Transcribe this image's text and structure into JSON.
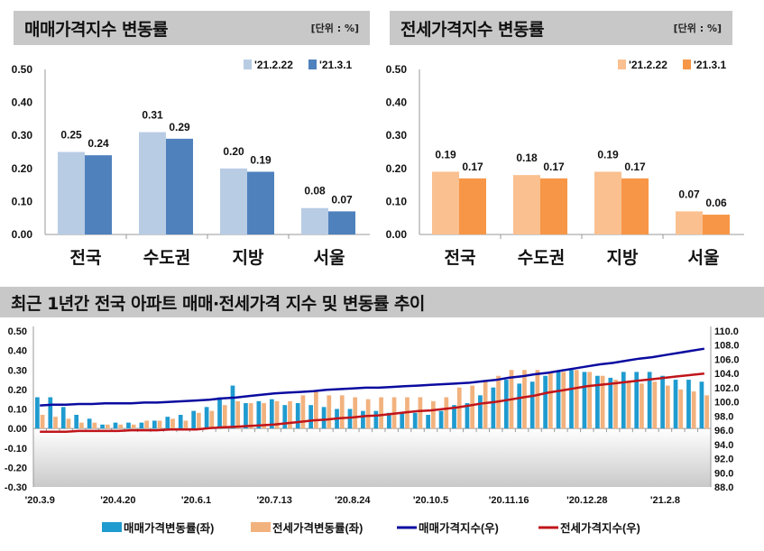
{
  "chart_data": [
    {
      "type": "bar",
      "title": "매매가격지수 변동률",
      "unit": "[단위 : %]",
      "categories": [
        "전국",
        "수도권",
        "지방",
        "서울"
      ],
      "ylim": [
        0,
        0.5
      ],
      "yticks": [
        "0.00",
        "0.10",
        "0.20",
        "0.30",
        "0.40",
        "0.50"
      ],
      "legend": "top-right",
      "series": [
        {
          "name": "'21.2.22",
          "values": [
            0.25,
            0.31,
            0.2,
            0.08
          ],
          "color": "#b8cce4"
        },
        {
          "name": "'21.3.1",
          "values": [
            0.24,
            0.29,
            0.19,
            0.07
          ],
          "color": "#4f81bd"
        }
      ]
    },
    {
      "type": "bar",
      "title": "전세가격지수 변동률",
      "unit": "[단위 : %]",
      "categories": [
        "전국",
        "수도권",
        "지방",
        "서울"
      ],
      "ylim": [
        0,
        0.5
      ],
      "yticks": [
        "0.00",
        "0.10",
        "0.20",
        "0.30",
        "0.40",
        "0.50"
      ],
      "legend": "top-right",
      "series": [
        {
          "name": "'21.2.22",
          "values": [
            0.19,
            0.18,
            0.19,
            0.07
          ],
          "color": "#fac090"
        },
        {
          "name": "'21.3.1",
          "values": [
            0.17,
            0.17,
            0.17,
            0.06
          ],
          "color": "#f79646"
        }
      ]
    },
    {
      "type": "bar+line",
      "title": "최근 1년간 전국 아파트 매매·전세가격 지수 및 변동률 추이",
      "xtick_labels": [
        "'20.3.9",
        "'20.4.20",
        "'20.6.1",
        "'20.7.13",
        "'20.8.24",
        "'20.10.5",
        "'20.11.16",
        "'20.12.28",
        "'21.2.8"
      ],
      "ylim_left": [
        -0.3,
        0.5
      ],
      "yticks_left": [
        "0.50",
        "0.40",
        "0.30",
        "0.20",
        "0.10",
        "0.00",
        "-0.10",
        "-0.20",
        "-0.30"
      ],
      "ylim_right": [
        88,
        110
      ],
      "yticks_right": [
        "110.0",
        "108.0",
        "106.0",
        "104.0",
        "102.0",
        "100.0",
        "98.0",
        "96.0",
        "94.0",
        "92.0",
        "90.0",
        "88.0"
      ],
      "legend": "bottom",
      "series": [
        {
          "name": "매매가격변동률(좌)",
          "kind": "bar",
          "axis": "left",
          "color": "#1f9bcf",
          "values": [
            0.16,
            0.16,
            0.11,
            0.07,
            0.05,
            0.02,
            0.03,
            0.03,
            0.03,
            0.04,
            0.06,
            0.07,
            0.09,
            0.11,
            0.16,
            0.22,
            0.13,
            0.14,
            0.15,
            0.12,
            0.13,
            0.12,
            0.11,
            0.1,
            0.1,
            0.09,
            0.09,
            0.08,
            0.08,
            0.08,
            0.07,
            0.09,
            0.12,
            0.13,
            0.17,
            0.21,
            0.25,
            0.23,
            0.24,
            0.27,
            0.29,
            0.3,
            0.29,
            0.27,
            0.26,
            0.29,
            0.29,
            0.29,
            0.27,
            0.25,
            0.25,
            0.24
          ]
        },
        {
          "name": "전세가격변동률(좌)",
          "kind": "bar",
          "axis": "left",
          "color": "#f2b27e",
          "values": [
            0.07,
            0.06,
            0.05,
            0.03,
            0.03,
            0.02,
            0.02,
            0.02,
            0.04,
            0.04,
            0.05,
            0.04,
            0.08,
            0.09,
            0.12,
            0.14,
            0.13,
            0.13,
            0.14,
            0.14,
            0.17,
            0.19,
            0.17,
            0.17,
            0.16,
            0.15,
            0.16,
            0.16,
            0.16,
            0.16,
            0.14,
            0.16,
            0.21,
            0.22,
            0.24,
            0.27,
            0.3,
            0.3,
            0.3,
            0.29,
            0.29,
            0.3,
            0.29,
            0.27,
            0.25,
            0.24,
            0.23,
            0.24,
            0.22,
            0.2,
            0.19,
            0.17
          ]
        },
        {
          "name": "매매가격지수(우)",
          "kind": "line",
          "axis": "right",
          "color": "#0a0aa0",
          "values": [
            99.5,
            99.6,
            99.6,
            99.7,
            99.7,
            99.8,
            99.8,
            99.8,
            99.9,
            99.9,
            100.0,
            100.1,
            100.2,
            100.3,
            100.5,
            100.6,
            100.8,
            101.0,
            101.2,
            101.3,
            101.4,
            101.5,
            101.7,
            101.8,
            101.9,
            102.0,
            102.0,
            102.1,
            102.2,
            102.3,
            102.4,
            102.5,
            102.6,
            102.7,
            102.9,
            103.1,
            103.4,
            103.6,
            103.9,
            104.1,
            104.4,
            104.7,
            105.0,
            105.3,
            105.5,
            105.8,
            106.1,
            106.3,
            106.6,
            106.9,
            107.2,
            107.5
          ]
        },
        {
          "name": "전세가격지수(우)",
          "kind": "line",
          "axis": "right",
          "color": "#c0141a",
          "values": [
            95.8,
            95.8,
            95.8,
            95.9,
            95.9,
            95.9,
            95.9,
            96.0,
            96.0,
            96.0,
            96.1,
            96.1,
            96.1,
            96.3,
            96.4,
            96.5,
            96.6,
            96.7,
            96.8,
            97.0,
            97.2,
            97.4,
            97.5,
            97.7,
            97.8,
            98.0,
            98.1,
            98.3,
            98.5,
            98.7,
            98.8,
            99.0,
            99.2,
            99.5,
            99.8,
            100.0,
            100.3,
            100.6,
            100.9,
            101.3,
            101.6,
            101.9,
            102.2,
            102.4,
            102.6,
            102.8,
            103.0,
            103.2,
            103.4,
            103.6,
            103.8,
            104.0
          ]
        }
      ]
    }
  ]
}
